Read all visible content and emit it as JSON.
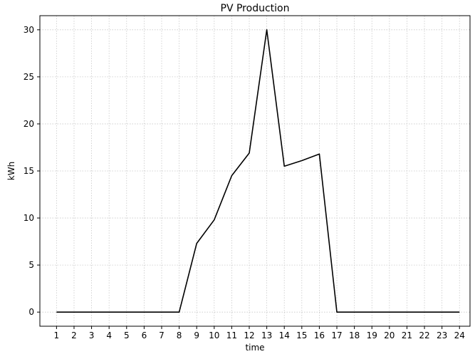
{
  "chart_data": {
    "type": "line",
    "title": "PV Production",
    "xlabel": "time",
    "ylabel": "kWh",
    "x": [
      1,
      2,
      3,
      4,
      5,
      6,
      7,
      8,
      9,
      10,
      11,
      12,
      13,
      14,
      15,
      16,
      17,
      18,
      19,
      20,
      21,
      22,
      23,
      24
    ],
    "series": [
      {
        "values": [
          0,
          0,
          0,
          0,
          0,
          0,
          0,
          0,
          7.3,
          9.8,
          14.5,
          16.9,
          30,
          15.5,
          16.1,
          16.8,
          0,
          0,
          0,
          0,
          0,
          0,
          0,
          0
        ],
        "color": "#000000"
      }
    ],
    "xticks": [
      "1",
      "2",
      "3",
      "4",
      "5",
      "6",
      "7",
      "8",
      "9",
      "10",
      "11",
      "12",
      "13",
      "14",
      "15",
      "16",
      "17",
      "18",
      "19",
      "20",
      "21",
      "22",
      "23",
      "24"
    ],
    "yticks": [
      0,
      5,
      10,
      15,
      20,
      25,
      30
    ],
    "ylim": [
      -1.5,
      31.5
    ],
    "xlim": [
      0.05,
      24.6
    ],
    "grid": true
  }
}
